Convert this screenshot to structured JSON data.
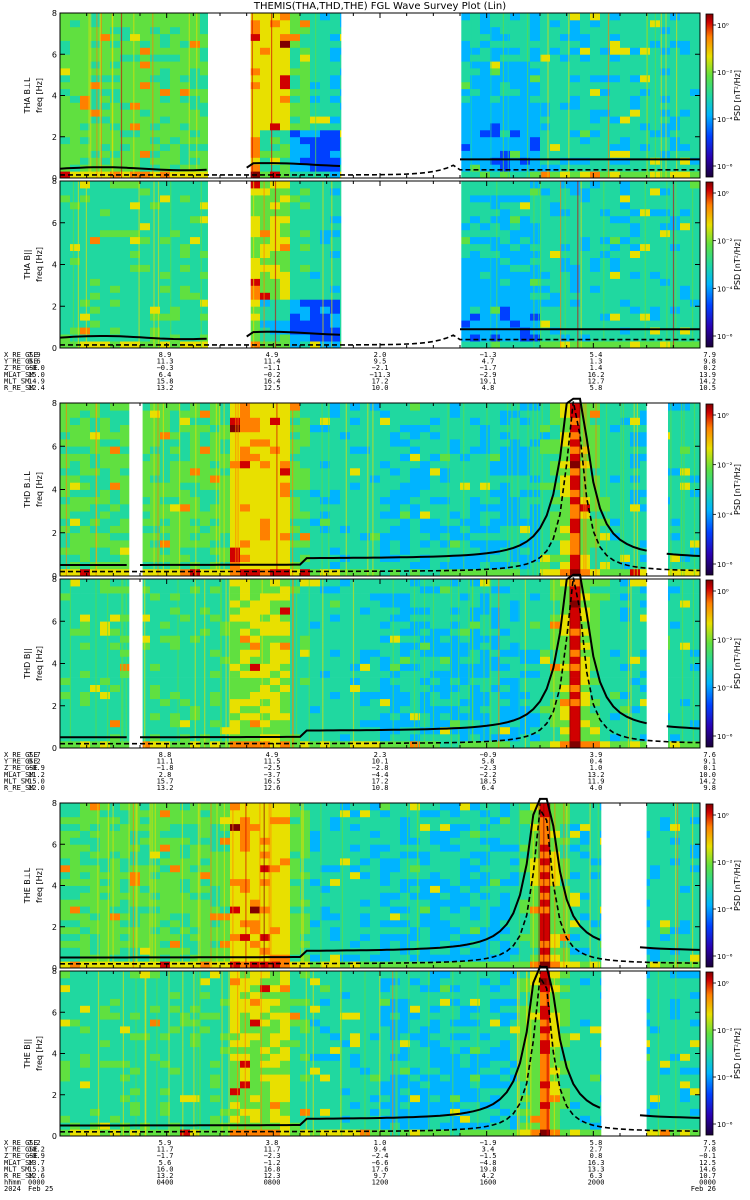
{
  "title": "THEMIS(THA,THD,THE) FGL Wave Survey Plot (Lin)",
  "colors": {
    "bar": [
      "#1a003a",
      "#2a00b0",
      "#0040ff",
      "#00b4ff",
      "#20d8a0",
      "#60e040",
      "#e8e000",
      "#ff8000",
      "#d00000",
      "#800000"
    ],
    "background_lo": "#2a56d8",
    "background_mid": "#3ecfb8",
    "background_hi": "#e8e020",
    "gap": "#ffffff"
  },
  "chart_data": [
    {
      "type": "heatmap",
      "probe": "THA",
      "panels": [
        {
          "ylabel": "THA B⊥L",
          "unit": "freq [Hz]",
          "ylim": [
            0,
            8
          ],
          "yticks": [
            0,
            2,
            4,
            6,
            8
          ],
          "cbar_label": "PSD [nT²/Hz]",
          "cbar_ticks": [
            "10⁰",
            "10⁻²",
            "10⁻⁴",
            "10⁻⁶"
          ]
        },
        {
          "ylabel": "THA B||",
          "unit": "freq [Hz]",
          "ylim": [
            0,
            8
          ],
          "yticks": [
            0,
            2,
            4,
            6,
            8
          ],
          "cbar_label": "PSD [nT²/Hz]",
          "cbar_ticks": [
            "10⁰",
            "10⁻²",
            "10⁻⁴",
            "10⁻⁶"
          ]
        }
      ],
      "gaps_hours": [
        [
          5.55,
          7.15
        ],
        [
          10.55,
          15.05
        ]
      ],
      "ephemeris": {
        "labels": [
          "X_RE_GSE",
          "Y_RE_GSE",
          "Z_RE_GSE",
          "MLAT_SM",
          "MLT_SM",
          "R_RE_SM"
        ],
        "rows": [
          [
            "7.9",
            "8.9",
            "4.9",
            "2.0",
            "−1.3",
            "5.4",
            "7.9"
          ],
          [
            "9.6",
            "11.3",
            "11.4",
            "9.5",
            "4.7",
            "1.3",
            "9.8"
          ],
          [
            "−0.0",
            "−0.3",
            "−1.1",
            "−2.1",
            "−1.7",
            "1.4",
            "0.2"
          ],
          [
            "15.0",
            "6.4",
            "−0.2",
            "−11.3",
            "−2.9",
            "16.2",
            "13.9"
          ],
          [
            "14.9",
            "15.8",
            "16.4",
            "17.2",
            "19.1",
            "12.7",
            "14.2"
          ],
          [
            "12.4",
            "13.2",
            "12.5",
            "10.0",
            "4.8",
            "5.8",
            "10.5"
          ]
        ]
      }
    },
    {
      "type": "heatmap",
      "probe": "THD",
      "panels": [
        {
          "ylabel": "THD B⊥L",
          "unit": "freq [Hz]",
          "ylim": [
            0,
            8
          ],
          "yticks": [
            0,
            2,
            4,
            6,
            8
          ],
          "cbar_label": "PSD [nT²/Hz]",
          "cbar_ticks": [
            "10⁰",
            "10⁻²",
            "10⁻⁴",
            "10⁻⁶"
          ]
        },
        {
          "ylabel": "THD B||",
          "unit": "freq [Hz]",
          "ylim": [
            0,
            8
          ],
          "yticks": [
            0,
            2,
            4,
            6,
            8
          ],
          "cbar_label": "PSD [nT²/Hz]",
          "cbar_ticks": [
            "10⁰",
            "10⁻²",
            "10⁻⁴",
            "10⁻⁶"
          ]
        }
      ],
      "gaps_hours": [
        [
          2.6,
          3.1
        ],
        [
          22.0,
          22.8
        ]
      ],
      "ephemeris": {
        "labels": [
          "X_RE_GSE",
          "Y_RE_GSE",
          "Z_RE_GSE",
          "MLAT_SM",
          "MLT_SM",
          "R_RE_SM"
        ],
        "rows": [
          [
            "7.7",
            "8.8",
            "4.9",
            "2.3",
            "−0.9",
            "3.9",
            "7.6"
          ],
          [
            "9.2",
            "11.1",
            "11.5",
            "10.1",
            "5.8",
            "0.4",
            "9.1"
          ],
          [
            "−0.9",
            "−1.8",
            "−2.5",
            "−2.8",
            "−2.3",
            "1.0",
            "0.1"
          ],
          [
            "11.2",
            "2.8",
            "−3.7",
            "−4.4",
            "−2.2",
            "13.2",
            "10.0"
          ],
          [
            "15.0",
            "15.7",
            "16.5",
            "17.2",
            "18.5",
            "11.9",
            "14.2"
          ],
          [
            "12.0",
            "13.2",
            "12.6",
            "10.8",
            "6.4",
            "4.0",
            "9.8"
          ]
        ]
      }
    },
    {
      "type": "heatmap",
      "probe": "THE",
      "panels": [
        {
          "ylabel": "THE B⊥L",
          "unit": "freq [Hz]",
          "ylim": [
            0,
            8
          ],
          "yticks": [
            0,
            2,
            4,
            6,
            8
          ],
          "cbar_label": "PSD [nT²/Hz]",
          "cbar_ticks": [
            "10⁰",
            "10⁻²",
            "10⁻⁴",
            "10⁻⁶"
          ]
        },
        {
          "ylabel": "THE B||",
          "unit": "freq [Hz]",
          "ylim": [
            0,
            8
          ],
          "yticks": [
            0,
            2,
            4,
            6,
            8
          ],
          "cbar_label": "PSD [nT²/Hz]",
          "cbar_ticks": [
            "10⁰",
            "10⁻²",
            "10⁻⁴",
            "10⁻⁶"
          ]
        }
      ],
      "gaps_hours": [
        [
          20.3,
          22.0
        ]
      ],
      "ephemeris": {
        "labels": [
          "X_RE_GSE",
          "Y_RE_GSE",
          "Z_RE_GSE",
          "MLAT_SM",
          "MLT_SM",
          "R_RE_SM",
          "hhmm",
          "2024"
        ],
        "rows": [
          [
            "7.2",
            "5.9",
            "3.8",
            "1.0",
            "−1.9",
            "5.8",
            "7.5"
          ],
          [
            "10.2",
            "11.7",
            "11.7",
            "9.4",
            "3.4",
            "2.7",
            "7.8"
          ],
          [
            "−0.9",
            "−1.7",
            "−2.3",
            "−2.4",
            "−1.5",
            "0.8",
            "−0.1"
          ],
          [
            "13.7",
            "5.6",
            "−1.2",
            "−6.6",
            "−4.8",
            "16.3",
            "12.5"
          ],
          [
            "15.3",
            "16.0",
            "16.8",
            "17.6",
            "19.8",
            "13.3",
            "14.6"
          ],
          [
            "12.6",
            "13.2",
            "12.3",
            "9.7",
            "4.2",
            "6.3",
            "10.7"
          ],
          [
            "0000",
            "0400",
            "0800",
            "1200",
            "1600",
            "2000",
            "0000"
          ],
          [
            "Feb 25",
            "",
            "",
            "",
            "",
            "",
            "Feb 26"
          ]
        ]
      }
    }
  ]
}
